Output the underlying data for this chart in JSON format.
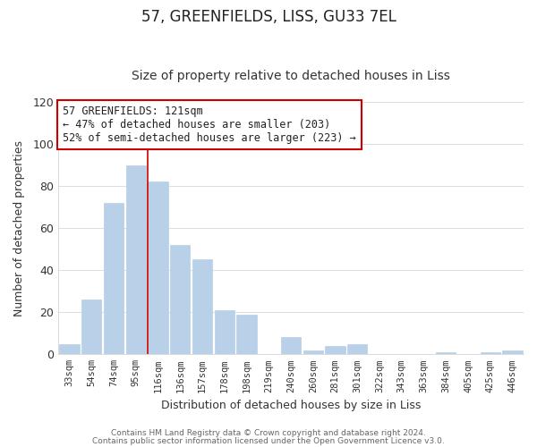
{
  "title": "57, GREENFIELDS, LISS, GU33 7EL",
  "subtitle": "Size of property relative to detached houses in Liss",
  "xlabel": "Distribution of detached houses by size in Liss",
  "ylabel": "Number of detached properties",
  "categories": [
    "33sqm",
    "54sqm",
    "74sqm",
    "95sqm",
    "116sqm",
    "136sqm",
    "157sqm",
    "178sqm",
    "198sqm",
    "219sqm",
    "240sqm",
    "260sqm",
    "281sqm",
    "301sqm",
    "322sqm",
    "343sqm",
    "363sqm",
    "384sqm",
    "405sqm",
    "425sqm",
    "446sqm"
  ],
  "values": [
    5,
    26,
    72,
    90,
    82,
    52,
    45,
    21,
    19,
    0,
    8,
    2,
    4,
    5,
    0,
    0,
    0,
    1,
    0,
    1,
    2
  ],
  "bar_color": "#b8d0e8",
  "red_line_index": 4,
  "ylim": [
    0,
    120
  ],
  "yticks": [
    0,
    20,
    40,
    60,
    80,
    100,
    120
  ],
  "annotation_line1": "57 GREENFIELDS: 121sqm",
  "annotation_line2": "← 47% of detached houses are smaller (203)",
  "annotation_line3": "52% of semi-detached houses are larger (223) →",
  "footer1": "Contains HM Land Registry data © Crown copyright and database right 2024.",
  "footer2": "Contains public sector information licensed under the Open Government Licence v3.0.",
  "bg_color": "#ffffff",
  "plot_bg_color": "#ffffff",
  "title_fontsize": 12,
  "subtitle_fontsize": 10,
  "annotation_box_edge_color": "#cc0000",
  "grid_color": "#dddddd"
}
